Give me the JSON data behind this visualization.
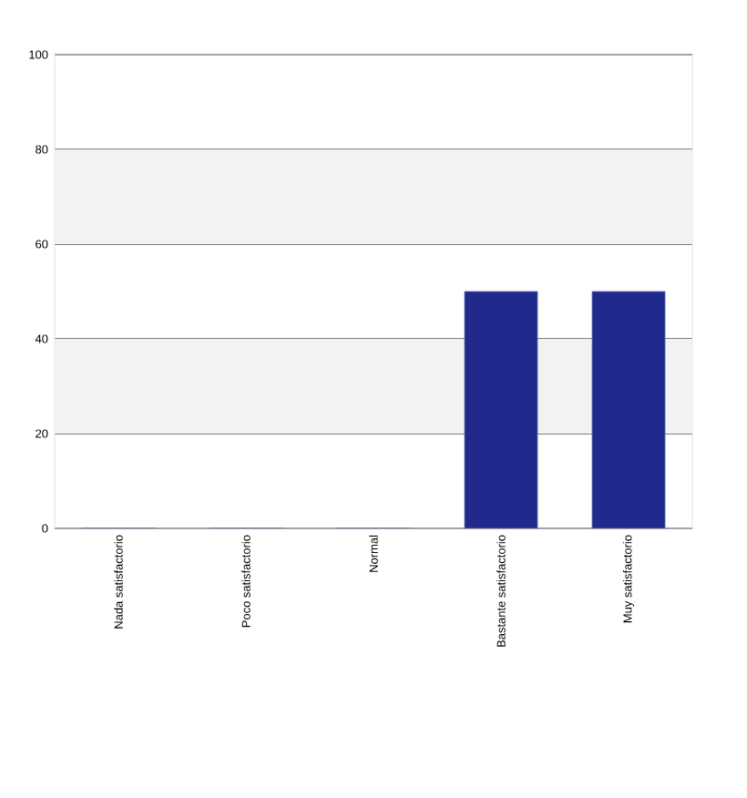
{
  "chart_data": {
    "type": "bar",
    "categories": [
      "Nada satisfactorio",
      "Poco satisfactorio",
      "Normal",
      "Bastante satisfactorio",
      "Muy satisfactorio"
    ],
    "values": [
      0,
      0,
      0,
      50,
      50
    ],
    "color": "#1f2a8c",
    "ylim": [
      0,
      100
    ],
    "yticks": [
      0,
      20,
      40,
      60,
      80,
      100
    ],
    "grid": "y",
    "bands": [
      {
        "axis": "y",
        "from": 20,
        "to": 40,
        "color": "#f2f2f2"
      },
      {
        "axis": "y",
        "from": 60,
        "to": 80,
        "color": "#f2f2f2"
      }
    ]
  }
}
